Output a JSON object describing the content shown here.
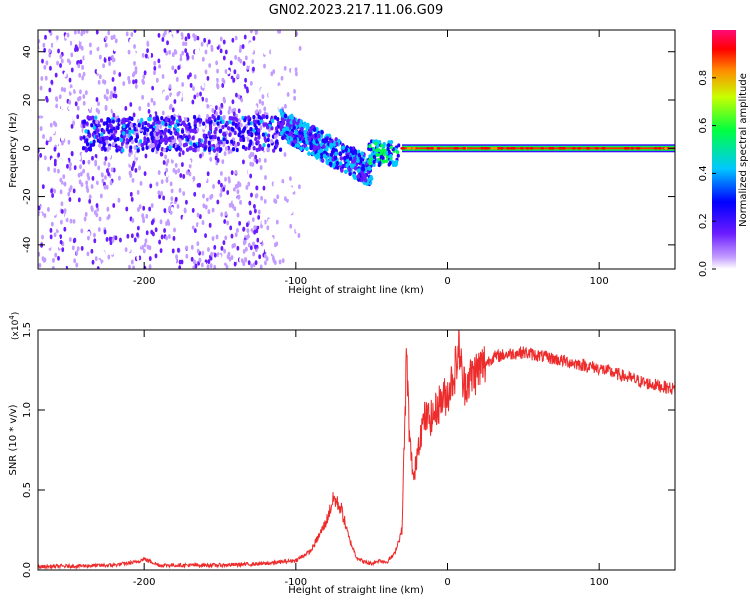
{
  "title": "GN02.2023.217.11.06.G09",
  "chart_data": [
    {
      "type": "heatmap",
      "xlabel": "Height of straight line (km)",
      "ylabel": "Frequency (Hz)",
      "xlim": [
        -270,
        150
      ],
      "ylim": [
        -50,
        49
      ],
      "x_ticks": [
        -200,
        -100,
        0,
        100
      ],
      "y_ticks": [
        -40,
        -20,
        0,
        20,
        40
      ],
      "colorbar": {
        "label": "Normalized spectral amplitude",
        "range": [
          0,
          1
        ],
        "ticks": [
          "0.0",
          "0.2",
          "0.4",
          "0.6",
          "0.8"
        ],
        "colors": [
          "#ffffff",
          "#b47cff",
          "#4b00ff",
          "#0000ff",
          "#00c8ff",
          "#00ff50",
          "#c8ff00",
          "#ff8c00",
          "#ff0000",
          "#ff0080"
        ]
      },
      "features": [
        {
          "x_range": [
            -270,
            -110
          ],
          "f_center": 5,
          "f_spread": 45,
          "level": "scattered noise"
        },
        {
          "x_range": [
            -110,
            -50
          ],
          "f_center_start": 10,
          "f_center_end": -10,
          "level": "high"
        },
        {
          "x_range": [
            -50,
            150
          ],
          "f_center": 0,
          "level": "max (narrow carrier line)"
        }
      ]
    },
    {
      "type": "line",
      "xlabel": "Height of straight line (km)",
      "ylabel": "SNR (10 * v/v)",
      "yscale_label": "(x10",
      "yscale_exp": "4",
      "yscale_close": ")",
      "xlim": [
        -270,
        150
      ],
      "ylim": [
        0,
        1.5
      ],
      "x_ticks": [
        -200,
        -100,
        0,
        100
      ],
      "y_ticks": [
        "0.0",
        "0.5",
        "1.0",
        "1.5"
      ],
      "color": "#ee2b2b",
      "series": [
        {
          "x": [
            -270,
            -220,
            -205,
            -200,
            -190,
            -150,
            -120,
            -100,
            -90,
            -80,
            -75,
            -70,
            -65,
            -60,
            -55,
            -50,
            -45,
            -40,
            -35,
            -30,
            -27,
            -25,
            -22,
            -20,
            -18,
            -15,
            -10,
            -5,
            0,
            5,
            8,
            10,
            15,
            20,
            30,
            40,
            50,
            60,
            70,
            80,
            90,
            100,
            110,
            120,
            130,
            140,
            150
          ],
          "y": [
            0.02,
            0.03,
            0.05,
            0.07,
            0.03,
            0.03,
            0.04,
            0.06,
            0.12,
            0.3,
            0.45,
            0.38,
            0.2,
            0.08,
            0.05,
            0.04,
            0.06,
            0.05,
            0.1,
            0.25,
            1.35,
            0.8,
            0.55,
            0.75,
            0.85,
            0.95,
            0.95,
            1.05,
            1.1,
            1.25,
            1.4,
            1.15,
            1.2,
            1.25,
            1.33,
            1.35,
            1.36,
            1.34,
            1.32,
            1.3,
            1.28,
            1.26,
            1.23,
            1.2,
            1.17,
            1.15,
            1.13
          ]
        }
      ]
    }
  ]
}
